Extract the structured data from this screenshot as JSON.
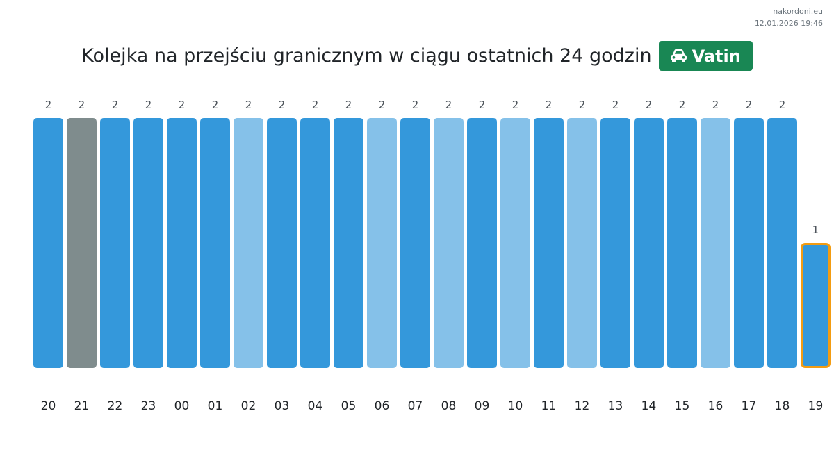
{
  "site": {
    "name": "nakordoni.eu",
    "timestamp": "12.01.2026 19:46"
  },
  "header": {
    "title": "Kolejka na przejściu granicznym w ciągu ostatnich 24 godzin",
    "badge_label": "Vatin",
    "badge_icon": "car-icon",
    "badge_color": "#198754"
  },
  "chart_data": {
    "type": "bar",
    "categories": [
      "20",
      "21",
      "22",
      "23",
      "00",
      "01",
      "02",
      "03",
      "04",
      "05",
      "06",
      "07",
      "08",
      "09",
      "10",
      "11",
      "12",
      "13",
      "14",
      "15",
      "16",
      "17",
      "18",
      "19"
    ],
    "values": [
      2,
      2,
      2,
      2,
      2,
      2,
      2,
      2,
      2,
      2,
      2,
      2,
      2,
      2,
      2,
      2,
      2,
      2,
      2,
      2,
      2,
      2,
      2,
      1
    ],
    "colors": [
      "#3498db",
      "#7f8c8d",
      "#3498db",
      "#3498db",
      "#3498db",
      "#3498db",
      "#85c1e9",
      "#3498db",
      "#3498db",
      "#3498db",
      "#85c1e9",
      "#3498db",
      "#85c1e9",
      "#3498db",
      "#85c1e9",
      "#3498db",
      "#85c1e9",
      "#3498db",
      "#3498db",
      "#3498db",
      "#85c1e9",
      "#3498db",
      "#3498db",
      "#3498db"
    ],
    "highlight_index": 23,
    "highlight_color": "#f39c12",
    "ylim": [
      0,
      2
    ],
    "title": "",
    "xlabel": "",
    "ylabel": ""
  }
}
